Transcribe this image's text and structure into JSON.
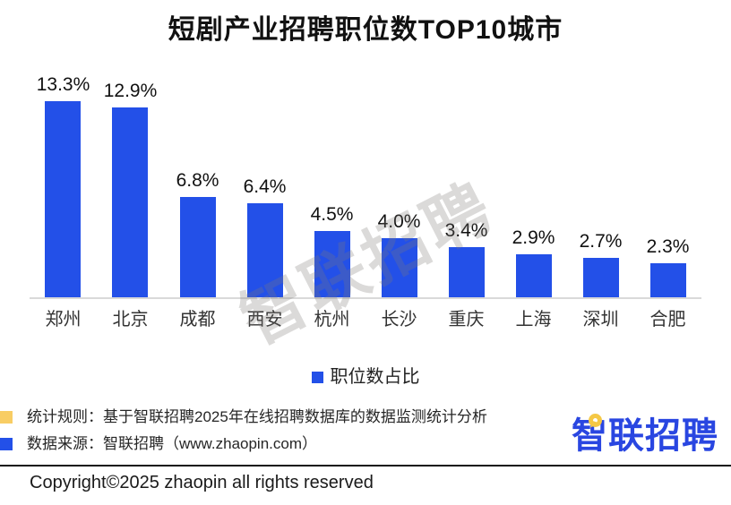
{
  "chart_data": {
    "type": "bar",
    "title": "短剧产业招聘职位数TOP10城市",
    "categories": [
      "郑州",
      "北京",
      "成都",
      "西安",
      "杭州",
      "长沙",
      "重庆",
      "上海",
      "深圳",
      "合肥"
    ],
    "values": [
      13.3,
      12.9,
      6.8,
      6.4,
      4.5,
      4.0,
      3.4,
      2.9,
      2.7,
      2.3
    ],
    "value_labels": [
      "13.3%",
      "12.9%",
      "6.8%",
      "6.4%",
      "4.5%",
      "4.0%",
      "3.4%",
      "2.9%",
      "2.7%",
      "2.3%"
    ],
    "xlabel": "",
    "ylabel": "",
    "ylim": [
      0,
      15.3
    ],
    "grid": false,
    "legend_position": "bottom",
    "bar_color": "#2350e8",
    "axis_line_color": "#d9d9d9"
  },
  "legend": {
    "label": "职位数占比",
    "color": "#2350e8"
  },
  "watermark": "智联招聘",
  "footer": {
    "stat_rule": "统计规则：基于智联招聘2025年在线招聘数据库的数据监测统计分析",
    "data_source": "数据来源：智联招聘（www.zhaopin.com）",
    "yellow_marker_color": "#f8cd64",
    "blue_marker_color": "#2350e8",
    "logo_text": "智联招聘",
    "logo_color": "#2946e1",
    "logo_bubble_color": "#f5c845",
    "copyright": "Copyright©2025 zhaopin all rights reserved"
  }
}
